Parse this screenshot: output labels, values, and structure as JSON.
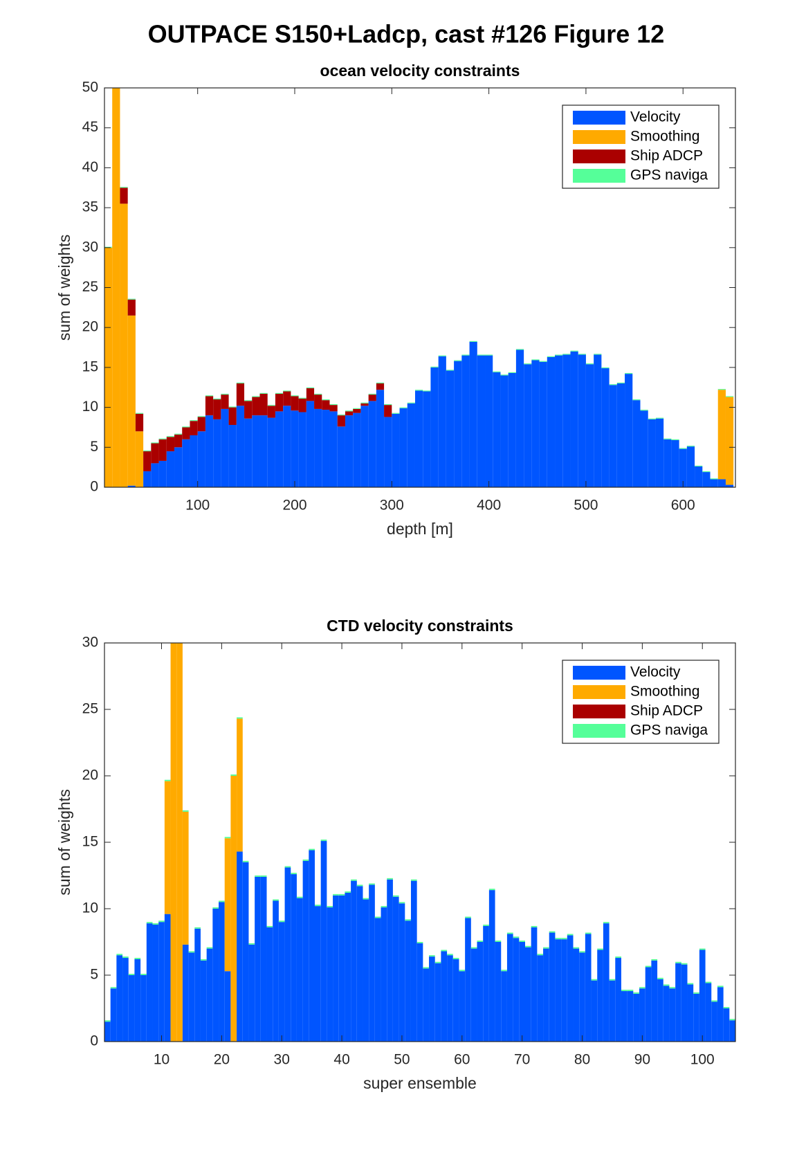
{
  "title": "OUTPACE S150+Ladcp, cast #126  Figure 12",
  "chart_data": [
    {
      "type": "stacked_bar",
      "title": "ocean velocity constraints",
      "xlabel": "depth [m]",
      "ylabel": "sum of weights",
      "x": [
        8,
        16,
        24,
        32,
        40,
        48,
        56,
        64,
        72,
        80,
        88,
        96,
        104,
        112,
        120,
        128,
        136,
        144,
        152,
        160,
        168,
        176,
        184,
        192,
        200,
        208,
        216,
        224,
        232,
        240,
        248,
        256,
        264,
        272,
        280,
        288,
        296,
        304,
        312,
        320,
        328,
        336,
        344,
        352,
        360,
        368,
        376,
        384,
        392,
        400,
        408,
        416,
        424,
        432,
        440,
        448,
        456,
        464,
        472,
        480,
        488,
        496,
        504,
        512,
        520,
        528,
        536,
        544,
        552,
        560,
        568,
        576,
        584,
        592,
        600,
        608,
        616,
        624,
        632,
        640,
        648
      ],
      "series": [
        {
          "name": "Velocity",
          "color": "#0055ff",
          "values": [
            0,
            0,
            0,
            0.2,
            0,
            2,
            3,
            3.3,
            4.5,
            5,
            6,
            6.5,
            7,
            9,
            8.5,
            9.8,
            7.8,
            10.2,
            8.6,
            9,
            9,
            8.7,
            9.5,
            10.2,
            9.6,
            9.4,
            10.8,
            9.8,
            9.7,
            9.5,
            7.6,
            9,
            9.3,
            10.2,
            10.8,
            12.2,
            8.8,
            9.2,
            9.9,
            10.5,
            12.1,
            12,
            15,
            16.4,
            14.6,
            15.8,
            16.5,
            18.2,
            16.5,
            16.5,
            14.4,
            14,
            14.3,
            17.2,
            15.4,
            15.9,
            15.7,
            16.3,
            16.5,
            16.6,
            17,
            16.6,
            15.4,
            16.6,
            14.9,
            12.8,
            13,
            14.2,
            10.9,
            9.6,
            8.5,
            8.6,
            6,
            5.9,
            4.8,
            5.1,
            2.6,
            1.9,
            1,
            1,
            0.3
          ]
        },
        {
          "name": "Smoothing",
          "color": "#ffaa00",
          "values": [
            30,
            50,
            35.5,
            21.3,
            7,
            0,
            0,
            0,
            0,
            0,
            0,
            0,
            0,
            0,
            0,
            0,
            0,
            0,
            0,
            0,
            0,
            0,
            0,
            0,
            0,
            0,
            0,
            0,
            0,
            0,
            0,
            0,
            0,
            0,
            0,
            0,
            0,
            0,
            0,
            0,
            0,
            0,
            0,
            0,
            0,
            0,
            0,
            0,
            0,
            0,
            0,
            0,
            0,
            0,
            0,
            0,
            0,
            0,
            0,
            0,
            0,
            0,
            0,
            0,
            0,
            0,
            0,
            0,
            0,
            0,
            0,
            0,
            0,
            0,
            0,
            0,
            0,
            0,
            0,
            11.2,
            11
          ]
        },
        {
          "name": "Ship ADCP",
          "color": "#aa0000",
          "values": [
            0,
            0,
            2,
            2,
            2.2,
            2.5,
            2.5,
            2.7,
            1.8,
            1.6,
            1.5,
            1.8,
            1.8,
            2.4,
            2.5,
            1.8,
            2.2,
            2.8,
            2.2,
            2.3,
            2.7,
            1.5,
            2.2,
            1.8,
            1.8,
            1.7,
            1.6,
            1.8,
            1.2,
            0.8,
            1.4,
            0.5,
            0.5,
            0.3,
            0.8,
            0.8,
            1.5,
            0,
            0,
            0,
            0,
            0,
            0,
            0,
            0,
            0,
            0,
            0,
            0,
            0,
            0,
            0,
            0,
            0,
            0,
            0,
            0,
            0,
            0,
            0,
            0,
            0,
            0,
            0,
            0,
            0,
            0,
            0,
            0,
            0,
            0,
            0,
            0,
            0,
            0,
            0,
            0,
            0,
            0,
            0,
            0
          ]
        },
        {
          "name": "GPS naviga",
          "color": "#55ff99",
          "values": [
            0.1,
            0.1,
            0.1,
            0.1,
            0.1,
            0.1,
            0.1,
            0.1,
            0.1,
            0.1,
            0.1,
            0.1,
            0.1,
            0.1,
            0.1,
            0.1,
            0.1,
            0.1,
            0.1,
            0.1,
            0.1,
            0.1,
            0.1,
            0.1,
            0.1,
            0.1,
            0.1,
            0.1,
            0.1,
            0.1,
            0.1,
            0.1,
            0.1,
            0.1,
            0.1,
            0.1,
            0.1,
            0.1,
            0.1,
            0.1,
            0.1,
            0.1,
            0.1,
            0.1,
            0.1,
            0.1,
            0.1,
            0.1,
            0.1,
            0.1,
            0.1,
            0.1,
            0.1,
            0.1,
            0.1,
            0.1,
            0.1,
            0.1,
            0.1,
            0.1,
            0.1,
            0.1,
            0.1,
            0.1,
            0.1,
            0.1,
            0.1,
            0.1,
            0.1,
            0.1,
            0.1,
            0.1,
            0.1,
            0.1,
            0.1,
            0.1,
            0.1,
            0.1,
            0.1,
            0.1,
            0.1
          ]
        }
      ],
      "xlim": [
        4,
        654
      ],
      "xticks": [
        100,
        200,
        300,
        400,
        500,
        600
      ],
      "ylim": [
        0,
        50
      ],
      "yticks": [
        0,
        5,
        10,
        15,
        20,
        25,
        30,
        35,
        40,
        45,
        50
      ],
      "legend": "northeast"
    },
    {
      "type": "stacked_bar",
      "title": "CTD velocity constraints",
      "xlabel": "super ensemble",
      "ylabel": "sum of weights",
      "x": [
        1,
        2,
        3,
        4,
        5,
        6,
        7,
        8,
        9,
        10,
        11,
        12,
        13,
        14,
        15,
        16,
        17,
        18,
        19,
        20,
        21,
        22,
        23,
        24,
        25,
        26,
        27,
        28,
        29,
        30,
        31,
        32,
        33,
        34,
        35,
        36,
        37,
        38,
        39,
        40,
        41,
        42,
        43,
        44,
        45,
        46,
        47,
        48,
        49,
        50,
        51,
        52,
        53,
        54,
        55,
        56,
        57,
        58,
        59,
        60,
        61,
        62,
        63,
        64,
        65,
        66,
        67,
        68,
        69,
        70,
        71,
        72,
        73,
        74,
        75,
        76,
        77,
        78,
        79,
        80,
        81,
        82,
        83,
        84,
        85,
        86,
        87,
        88,
        89,
        90,
        91,
        92,
        93,
        94,
        95,
        96,
        97,
        98,
        99,
        100,
        101,
        102,
        103,
        104,
        105
      ],
      "series": [
        {
          "name": "Velocity",
          "color": "#0055ff",
          "values": [
            1.5,
            4,
            6.5,
            6.3,
            5,
            6.2,
            5,
            8.9,
            8.8,
            9,
            9.6,
            0,
            0,
            7.3,
            6.7,
            8.5,
            6.1,
            7,
            10,
            10.5,
            5.3,
            0,
            14.3,
            13.5,
            7.3,
            12.4,
            12.4,
            8.6,
            10.6,
            9,
            13.1,
            12.6,
            10.8,
            13.6,
            14.4,
            10.2,
            15.1,
            10.1,
            11,
            11,
            11.2,
            12.1,
            11.7,
            10.7,
            11.8,
            9.3,
            10.1,
            12.2,
            10.9,
            10.4,
            9.1,
            12.1,
            7.4,
            5.5,
            6.4,
            5.9,
            6.8,
            6.5,
            6.2,
            5.3,
            9.3,
            7,
            7.5,
            8.7,
            11.4,
            7.5,
            5.3,
            8.1,
            7.8,
            7.5,
            7.1,
            8.6,
            6.5,
            7,
            8.2,
            7.7,
            7.7,
            8,
            7,
            6.7,
            8.1,
            4.6,
            6.9,
            8.9,
            4.6,
            6.3,
            3.8,
            3.8,
            3.6,
            4,
            5.6,
            6.1,
            4.7,
            4.2,
            4,
            5.9,
            5.8,
            4.3,
            3.6,
            6.9,
            4.4,
            3,
            4.1,
            2.5,
            1.6
          ]
        },
        {
          "name": "Smoothing",
          "color": "#ffaa00",
          "values": [
            0,
            0,
            0,
            0,
            0,
            0,
            0,
            0,
            0,
            0,
            10,
            30,
            30,
            10,
            0,
            0,
            0,
            0,
            0,
            0,
            10,
            20,
            10,
            0,
            0,
            0,
            0,
            0,
            0,
            0,
            0,
            0,
            0,
            0,
            0,
            0,
            0,
            0,
            0,
            0,
            0,
            0,
            0,
            0,
            0,
            0,
            0,
            0,
            0,
            0,
            0,
            0,
            0,
            0,
            0,
            0,
            0,
            0,
            0,
            0,
            0,
            0,
            0,
            0,
            0,
            0,
            0,
            0,
            0,
            0,
            0,
            0,
            0,
            0,
            0,
            0,
            0,
            0,
            0,
            0,
            0,
            0,
            0,
            0,
            0,
            0,
            0,
            0,
            0,
            0,
            0,
            0,
            0,
            0,
            0,
            0,
            0,
            0,
            0,
            0,
            0,
            0,
            0,
            0,
            0
          ]
        },
        {
          "name": "Ship ADCP",
          "color": "#aa0000",
          "values": [
            0,
            0,
            0,
            0,
            0,
            0,
            0,
            0,
            0,
            0,
            0,
            0,
            0,
            0,
            0,
            0,
            0,
            0,
            0,
            0,
            0,
            0,
            0,
            0,
            0,
            0,
            0,
            0,
            0,
            0,
            0,
            0,
            0,
            0,
            0,
            0,
            0,
            0,
            0,
            0,
            0,
            0,
            0,
            0,
            0,
            0,
            0,
            0,
            0,
            0,
            0,
            0,
            0,
            0,
            0,
            0,
            0,
            0,
            0,
            0,
            0,
            0,
            0,
            0,
            0,
            0,
            0,
            0,
            0,
            0,
            0,
            0,
            0,
            0,
            0,
            0,
            0,
            0,
            0,
            0,
            0,
            0,
            0,
            0,
            0,
            0,
            0,
            0,
            0,
            0,
            0,
            0,
            0,
            0,
            0,
            0,
            0,
            0,
            0,
            0,
            0,
            0,
            0,
            0,
            0
          ]
        },
        {
          "name": "GPS naviga",
          "color": "#55ff99",
          "values": [
            0.1,
            0.1,
            0.1,
            0.1,
            0.1,
            0.1,
            0.1,
            0.1,
            0.1,
            0.1,
            0.1,
            0.1,
            0.1,
            0.1,
            0.1,
            0.1,
            0.1,
            0.1,
            0.1,
            0.1,
            0.1,
            0.1,
            0.1,
            0.1,
            0.1,
            0.1,
            0.1,
            0.1,
            0.1,
            0.1,
            0.1,
            0.1,
            0.1,
            0.1,
            0.1,
            0.1,
            0.1,
            0.1,
            0.1,
            0.1,
            0.1,
            0.1,
            0.1,
            0.1,
            0.1,
            0.1,
            0.1,
            0.1,
            0.1,
            0.1,
            0.1,
            0.1,
            0.1,
            0.1,
            0.1,
            0.1,
            0.1,
            0.1,
            0.1,
            0.1,
            0.1,
            0.1,
            0.1,
            0.1,
            0.1,
            0.1,
            0.1,
            0.1,
            0.1,
            0.1,
            0.1,
            0.1,
            0.1,
            0.1,
            0.1,
            0.1,
            0.1,
            0.1,
            0.1,
            0.1,
            0.1,
            0.1,
            0.1,
            0.1,
            0.1,
            0.1,
            0.1,
            0.1,
            0.1,
            0.1,
            0.1,
            0.1,
            0.1,
            0.1,
            0.1,
            0.1,
            0.1,
            0.1,
            0.1,
            0.1,
            0.1,
            0.1,
            0.1,
            0.1,
            0.1
          ]
        }
      ],
      "xlim": [
        0.5,
        105.5
      ],
      "xticks": [
        10,
        20,
        30,
        40,
        50,
        60,
        70,
        80,
        90,
        100
      ],
      "ylim": [
        0,
        30
      ],
      "yticks": [
        0,
        5,
        10,
        15,
        20,
        25,
        30
      ],
      "legend": "northeast"
    }
  ]
}
